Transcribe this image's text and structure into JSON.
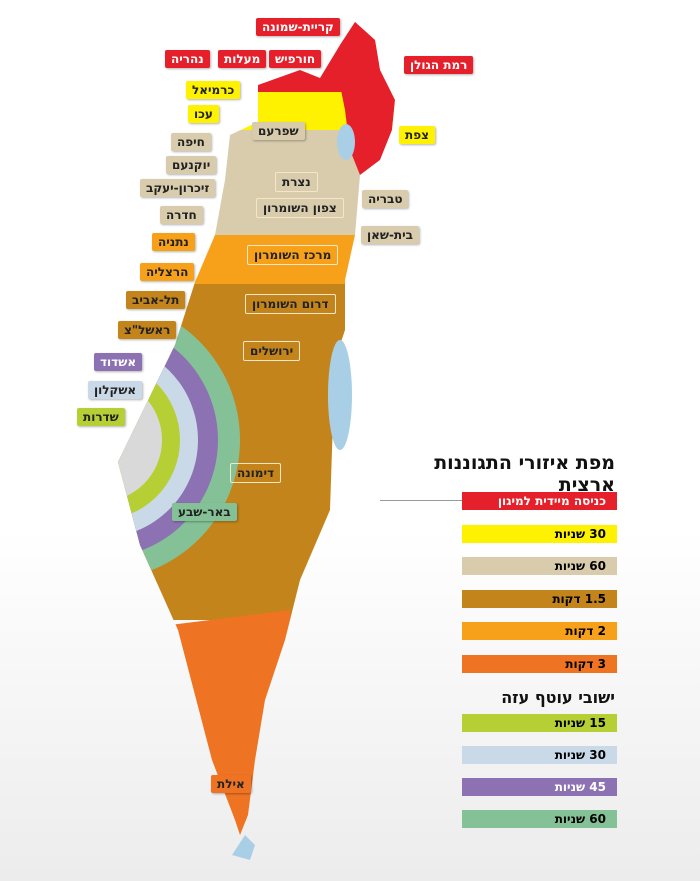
{
  "title": "מפת איזורי התגוננות ארצית",
  "gaza_title": "ישובי עוטף עזה",
  "colors": {
    "red": "#e5202a",
    "yellow": "#fff200",
    "beige": "#d8ccad",
    "orange": "#f7a11a",
    "brown": "#c4841c",
    "dark_orange": "#ee7423",
    "lime": "#b6cf34",
    "light_blue": "#c9d9e8",
    "purple": "#8c72b2",
    "green": "#85c196",
    "water": "#a9cfe6"
  },
  "legend": [
    {
      "label": "כניסה מיידית למיגון",
      "color": "#e5202a"
    },
    {
      "label": "30 שניות",
      "color": "#fff200"
    },
    {
      "label": "60 שניות",
      "color": "#d8ccad"
    },
    {
      "label": "1.5 דקות",
      "color": "#c4841c"
    },
    {
      "label": "2 דקות",
      "color": "#f7a11a"
    },
    {
      "label": "3 דקות",
      "color": "#ee7423"
    }
  ],
  "gaza_legend": [
    {
      "label": "15 שניות",
      "color": "#b6cf34"
    },
    {
      "label": "30 שניות",
      "color": "#c9d9e8"
    },
    {
      "label": "45 שניות",
      "color": "#8c72b2"
    },
    {
      "label": "60 שניות",
      "color": "#85c196"
    }
  ],
  "places": {
    "kiryat_shmona": "קריית-שמונה",
    "golan": "רמת הגולן",
    "nahariya": "נהריה",
    "maalot": "מעלות",
    "hurfeish": "חורפיש",
    "karmiel": "כרמיאל",
    "akko": "עכו",
    "safed": "צפת",
    "shfaram": "שפרעם",
    "haifa": "חיפה",
    "yokneam": "יוקנעם",
    "nazareth": "נצרת",
    "tiberias": "טבריה",
    "zichron": "זיכרון-יעקב",
    "north_samaria": "צפון השומרון",
    "beit_shean": "בית-שאן",
    "hadera": "חדרה",
    "netanya": "נתניה",
    "central_samaria": "מרכז השומרון",
    "herzliya": "הרצליה",
    "tel_aviv": "תל-אביב",
    "south_samaria": "דרום השומרון",
    "rishon": "ראשל\"צ",
    "jerusalem": "ירושלים",
    "ashdod": "אשדוד",
    "ashkelon": "אשקלון",
    "sderot": "שדרות",
    "dimona": "דימונה",
    "beer_sheva": "באר-שבע",
    "eilat": "אילת"
  }
}
